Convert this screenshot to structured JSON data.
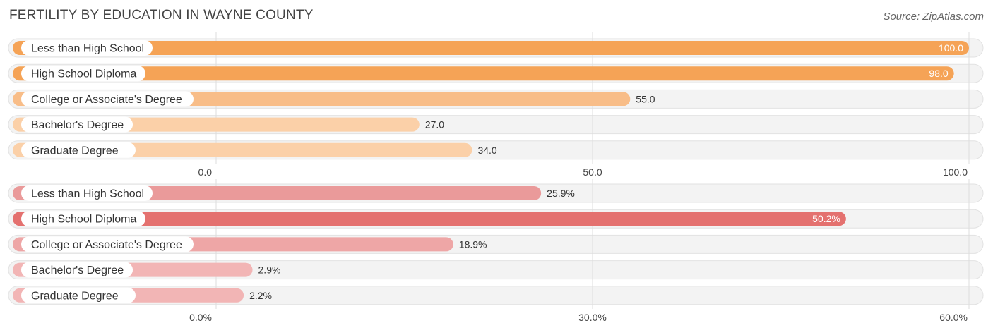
{
  "title": "FERTILITY BY EDUCATION IN WAYNE COUNTY",
  "source": "Source: ZipAtlas.com",
  "chart_data": [
    {
      "type": "bar",
      "orientation": "horizontal",
      "categories": [
        "Less than High School",
        "High School Diploma",
        "College or Associate's Degree",
        "Bachelor's Degree",
        "Graduate Degree"
      ],
      "values": [
        100.0,
        98.0,
        55.0,
        27.0,
        34.0
      ],
      "value_labels": [
        "100.0",
        "98.0",
        "55.0",
        "27.0",
        "34.0"
      ],
      "xlim": [
        0,
        100
      ],
      "ticks": [
        0,
        50,
        100
      ],
      "tick_labels": [
        "0.0",
        "50.0",
        "100.0"
      ],
      "grid": true,
      "colors": [
        "#f5a356",
        "#f5a356",
        "#f8bd88",
        "#fbd0a8",
        "#fbd0a8"
      ]
    },
    {
      "type": "bar",
      "orientation": "horizontal",
      "categories": [
        "Less than High School",
        "High School Diploma",
        "College or Associate's Degree",
        "Bachelor's Degree",
        "Graduate Degree"
      ],
      "values": [
        25.9,
        50.2,
        18.9,
        2.9,
        2.2
      ],
      "value_labels": [
        "25.9%",
        "50.2%",
        "18.9%",
        "2.9%",
        "2.2%"
      ],
      "xlim": [
        0,
        60
      ],
      "ticks": [
        0,
        30,
        60
      ],
      "tick_labels": [
        "0.0%",
        "30.0%",
        "60.0%"
      ],
      "grid": true,
      "colors": [
        "#ea9a9a",
        "#e4716f",
        "#eea6a6",
        "#f2b5b5",
        "#f2b5b5"
      ]
    }
  ]
}
